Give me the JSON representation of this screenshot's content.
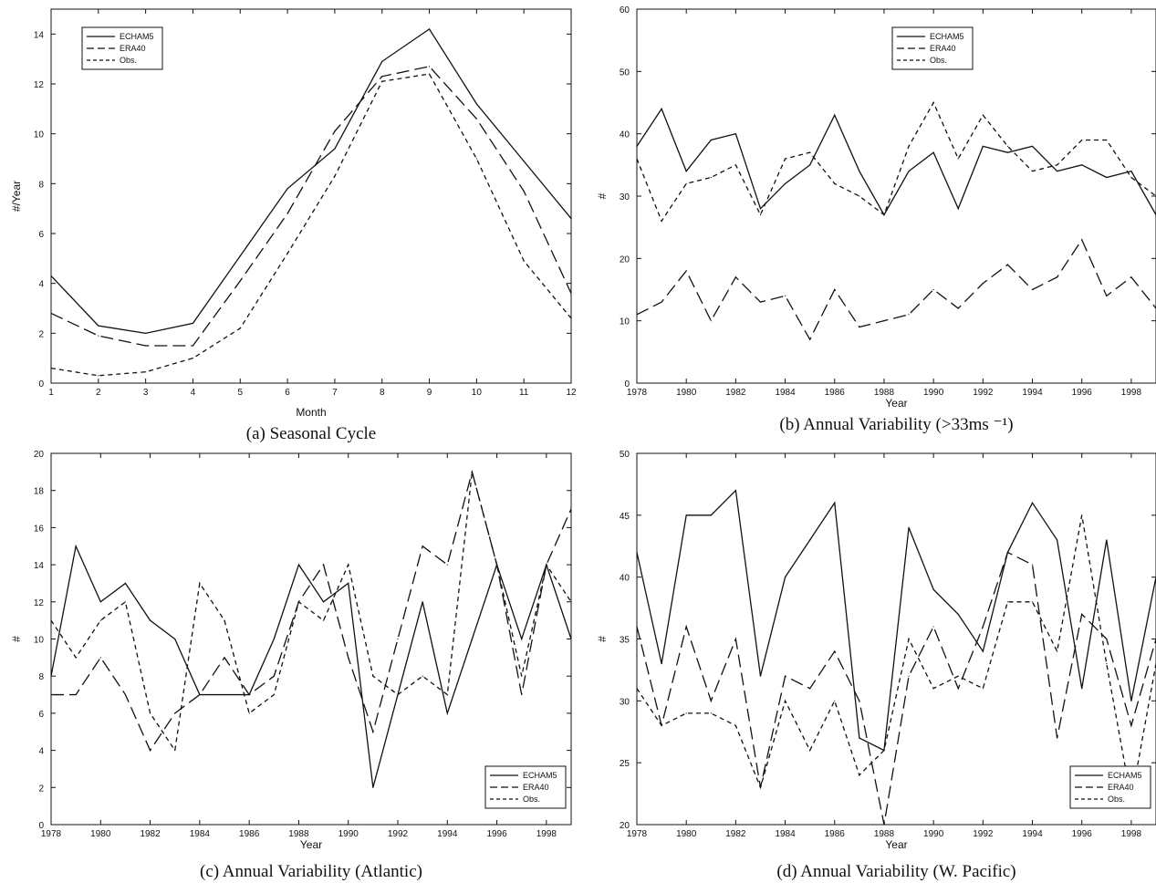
{
  "chart_data": [
    {
      "type": "line",
      "caption": "(a) Seasonal Cycle",
      "xlabel": "Month",
      "ylabel": "#/Year",
      "xlim": [
        1,
        12
      ],
      "ylim": [
        0,
        15
      ],
      "xticks": [
        1,
        2,
        3,
        4,
        5,
        6,
        7,
        8,
        9,
        10,
        11,
        12
      ],
      "yticks": [
        0,
        2,
        4,
        6,
        8,
        10,
        12,
        14
      ],
      "legend_position": "top-left",
      "x": [
        1,
        2,
        3,
        4,
        5,
        6,
        7,
        8,
        9,
        10,
        11,
        12
      ],
      "series": [
        {
          "name": "ECHAM5",
          "dash": "solid",
          "values": [
            4.3,
            2.3,
            2.0,
            2.4,
            5.1,
            7.8,
            9.4,
            12.9,
            14.2,
            11.2,
            8.9,
            6.6
          ]
        },
        {
          "name": "ERA40",
          "dash": "long",
          "values": [
            2.8,
            1.9,
            1.5,
            1.5,
            4.1,
            6.8,
            10.1,
            12.3,
            12.7,
            10.6,
            7.7,
            3.6
          ]
        },
        {
          "name": "Obs.",
          "dash": "short",
          "values": [
            0.6,
            0.3,
            0.45,
            1.0,
            2.2,
            5.2,
            8.3,
            12.1,
            12.4,
            9.0,
            4.9,
            2.6
          ]
        }
      ]
    },
    {
      "type": "line",
      "caption": "(b) Annual Variability (>33ms ⁻¹)",
      "xlabel": "Year",
      "ylabel": "#",
      "xlim": [
        1978,
        1999
      ],
      "ylim": [
        0,
        60
      ],
      "xticks": [
        1978,
        1980,
        1982,
        1984,
        1986,
        1988,
        1990,
        1992,
        1994,
        1996,
        1998
      ],
      "yticks": [
        0,
        10,
        20,
        30,
        40,
        50,
        60
      ],
      "legend_position": "top-center",
      "x": [
        1978,
        1979,
        1980,
        1981,
        1982,
        1983,
        1984,
        1985,
        1986,
        1987,
        1988,
        1989,
        1990,
        1991,
        1992,
        1993,
        1994,
        1995,
        1996,
        1997,
        1998,
        1999
      ],
      "series": [
        {
          "name": "ECHAM5",
          "dash": "solid",
          "values": [
            38,
            44,
            34,
            39,
            40,
            28,
            32,
            35,
            43,
            34,
            27,
            34,
            37,
            28,
            38,
            37,
            38,
            34,
            35,
            33,
            34,
            27
          ]
        },
        {
          "name": "ERA40",
          "dash": "long",
          "values": [
            11,
            13,
            18,
            10,
            17,
            13,
            14,
            7,
            15,
            9,
            10,
            11,
            15,
            12,
            16,
            19,
            15,
            17,
            23,
            14,
            17,
            12
          ]
        },
        {
          "name": "Obs.",
          "dash": "short",
          "values": [
            36,
            26,
            32,
            33,
            35,
            27,
            36,
            37,
            32,
            30,
            27,
            38,
            45,
            36,
            43,
            38,
            34,
            35,
            39,
            39,
            33,
            30
          ]
        }
      ]
    },
    {
      "type": "line",
      "caption": "(c) Annual Variability (Atlantic)",
      "xlabel": "Year",
      "ylabel": "#",
      "xlim": [
        1978,
        1999
      ],
      "ylim": [
        0,
        20
      ],
      "xticks": [
        1978,
        1980,
        1982,
        1984,
        1986,
        1988,
        1990,
        1992,
        1994,
        1996,
        1998
      ],
      "yticks": [
        0,
        2,
        4,
        6,
        8,
        10,
        12,
        14,
        16,
        18,
        20
      ],
      "legend_position": "bottom-right",
      "x": [
        1978,
        1979,
        1980,
        1981,
        1982,
        1983,
        1984,
        1985,
        1986,
        1987,
        1988,
        1989,
        1990,
        1991,
        1992,
        1993,
        1994,
        1995,
        1996,
        1997,
        1998,
        1999
      ],
      "series": [
        {
          "name": "ECHAM5",
          "dash": "solid",
          "values": [
            8,
            15,
            12,
            13,
            11,
            10,
            7,
            7,
            7,
            10,
            14,
            12,
            13,
            2,
            7,
            12,
            6,
            10,
            14,
            10,
            14,
            10
          ]
        },
        {
          "name": "ERA40",
          "dash": "long",
          "values": [
            7,
            7,
            9,
            7,
            4,
            6,
            7,
            9,
            7,
            8,
            12,
            14,
            9,
            5,
            10,
            15,
            14,
            19,
            14,
            7,
            14,
            17
          ]
        },
        {
          "name": "Obs.",
          "dash": "short",
          "values": [
            11,
            9,
            11,
            12,
            6,
            4,
            13,
            11,
            6,
            7,
            12,
            11,
            14,
            8,
            7,
            8,
            7,
            19,
            14,
            8,
            14,
            12
          ]
        }
      ]
    },
    {
      "type": "line",
      "caption": "(d) Annual Variability (W. Pacific)",
      "xlabel": "Year",
      "ylabel": "#",
      "xlim": [
        1978,
        1999
      ],
      "ylim": [
        20,
        50
      ],
      "xticks": [
        1978,
        1980,
        1982,
        1984,
        1986,
        1988,
        1990,
        1992,
        1994,
        1996,
        1998
      ],
      "yticks": [
        20,
        25,
        30,
        35,
        40,
        45,
        50
      ],
      "legend_position": "bottom-right",
      "x": [
        1978,
        1979,
        1980,
        1981,
        1982,
        1983,
        1984,
        1985,
        1986,
        1987,
        1988,
        1989,
        1990,
        1991,
        1992,
        1993,
        1994,
        1995,
        1996,
        1997,
        1998,
        1999
      ],
      "series": [
        {
          "name": "ECHAM5",
          "dash": "solid",
          "values": [
            42,
            33,
            45,
            45,
            47,
            32,
            40,
            43,
            46,
            27,
            26,
            44,
            39,
            37,
            34,
            42,
            46,
            43,
            31,
            43,
            30,
            40
          ]
        },
        {
          "name": "ERA40",
          "dash": "long",
          "values": [
            36,
            28,
            36,
            30,
            35,
            23,
            32,
            31,
            34,
            30,
            20,
            32,
            36,
            31,
            36,
            42,
            41,
            27,
            37,
            35,
            28,
            35
          ]
        },
        {
          "name": "Obs.",
          "dash": "short",
          "values": [
            31,
            28,
            29,
            29,
            28,
            23,
            30,
            26,
            30,
            24,
            26,
            35,
            31,
            32,
            31,
            38,
            38,
            34,
            45,
            33,
            22,
            33
          ]
        }
      ]
    }
  ]
}
